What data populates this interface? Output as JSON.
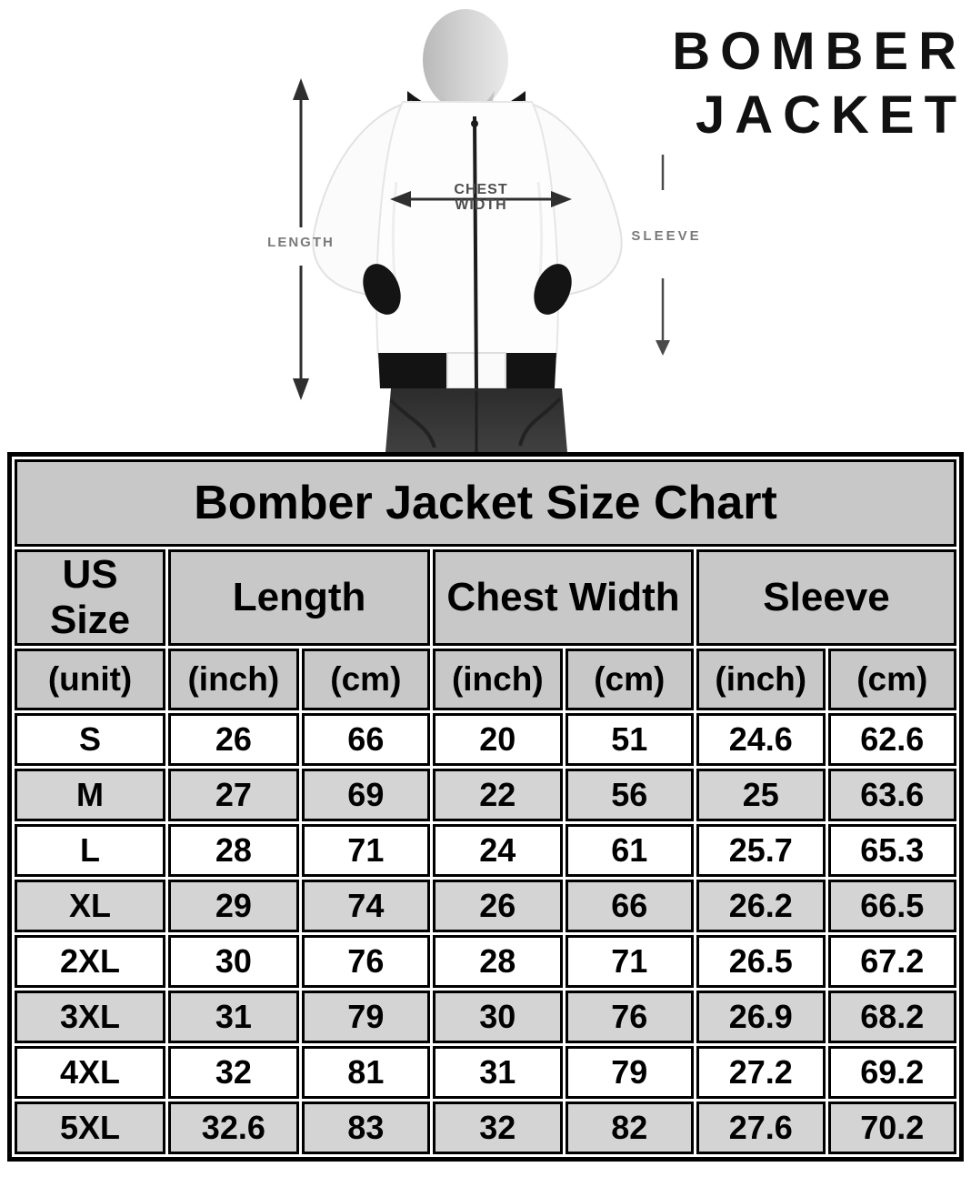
{
  "header": {
    "title_line1": "BOMBER",
    "title_line2": "JACKET"
  },
  "diagram": {
    "length_label": "LENGTH",
    "chest_label_line1": "CHEST",
    "chest_label_line2": "WIDTH",
    "sleeve_label": "SLEEVE"
  },
  "chart_data": {
    "type": "table",
    "title": "Bomber Jacket Size Chart",
    "column_groups": [
      {
        "label": "US Size",
        "span": 1
      },
      {
        "label": "Length",
        "span": 2
      },
      {
        "label": "Chest Width",
        "span": 2
      },
      {
        "label": "Sleeve",
        "span": 2
      }
    ],
    "unit_row": [
      "(unit)",
      "(inch)",
      "(cm)",
      "(inch)",
      "(cm)",
      "(inch)",
      "(cm)"
    ],
    "rows": [
      {
        "size": "S",
        "values": [
          "26",
          "66",
          "20",
          "51",
          "24.6",
          "62.6"
        ]
      },
      {
        "size": "M",
        "values": [
          "27",
          "69",
          "22",
          "56",
          "25",
          "63.6"
        ]
      },
      {
        "size": "L",
        "values": [
          "28",
          "71",
          "24",
          "61",
          "25.7",
          "65.3"
        ]
      },
      {
        "size": "XL",
        "values": [
          "29",
          "74",
          "26",
          "66",
          "26.2",
          "66.5"
        ]
      },
      {
        "size": "2XL",
        "values": [
          "30",
          "76",
          "28",
          "71",
          "26.5",
          "67.2"
        ]
      },
      {
        "size": "3XL",
        "values": [
          "31",
          "79",
          "30",
          "76",
          "26.9",
          "68.2"
        ]
      },
      {
        "size": "4XL",
        "values": [
          "32",
          "81",
          "31",
          "79",
          "27.2",
          "69.2"
        ]
      },
      {
        "size": "5XL",
        "values": [
          "32.6",
          "83",
          "32",
          "82",
          "27.6",
          "70.2"
        ]
      }
    ]
  },
  "colors": {
    "header_gray": "#c8c8c8",
    "alt_row_gray": "#d4d4d4",
    "border_black": "#000000",
    "annotation_gray": "#7a7a7a",
    "arrow_dark": "#2f2f2f"
  }
}
